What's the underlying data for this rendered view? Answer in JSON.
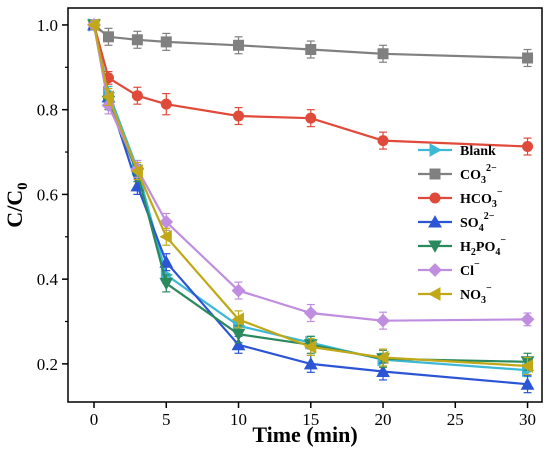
{
  "chart_data": {
    "type": "line",
    "xlabel": "Time (min)",
    "ylabel_main": "C/C",
    "ylabel_sub": "0",
    "xlim": [
      -1.8,
      31
    ],
    "ylim": [
      0.11,
      1.04
    ],
    "xticks": [
      0,
      5,
      10,
      15,
      20,
      25,
      30
    ],
    "yticks": [
      0.2,
      0.4,
      0.6,
      0.8,
      1.0
    ],
    "ytick_labels": [
      "0.2",
      "0.4",
      "0.6",
      "0.8",
      "1.0"
    ],
    "grid": false,
    "legend_position": "center-right",
    "x": [
      0,
      1,
      3,
      5,
      10,
      15,
      20,
      30
    ],
    "series": [
      {
        "key": "blank",
        "name_main": "Blank",
        "name_sup": "",
        "name_sub": "",
        "name_sub2": "",
        "name_tail": "",
        "color": "#3db8d6",
        "marker": "triangle-right",
        "values": [
          1.0,
          0.84,
          0.66,
          0.41,
          0.29,
          0.25,
          0.21,
          0.185
        ],
        "errors": [
          0.01,
          0.015,
          0.02,
          0.02,
          0.02,
          0.015,
          0.015,
          0.015
        ]
      },
      {
        "key": "co3",
        "name_main": "CO",
        "name_sub": "3",
        "name_sup": "2−",
        "name_sub2": "",
        "name_tail": "",
        "color": "#808080",
        "marker": "square",
        "values": [
          1.0,
          0.972,
          0.965,
          0.96,
          0.952,
          0.942,
          0.932,
          0.922
        ],
        "errors": [
          0.01,
          0.02,
          0.02,
          0.02,
          0.02,
          0.02,
          0.02,
          0.02
        ]
      },
      {
        "key": "hco3",
        "name_main": "HCO",
        "name_sub": "3",
        "name_sup": "−",
        "name_sub2": "",
        "name_tail": "",
        "color": "#e04a3a",
        "marker": "circle",
        "values": [
          1.0,
          0.875,
          0.833,
          0.813,
          0.785,
          0.78,
          0.727,
          0.713
        ],
        "errors": [
          0.01,
          0.015,
          0.02,
          0.025,
          0.02,
          0.02,
          0.02,
          0.02
        ]
      },
      {
        "key": "so4",
        "name_main": "SO",
        "name_sub": "4",
        "name_sup": "2−",
        "name_sub2": "",
        "name_tail": "",
        "color": "#2c55d6",
        "marker": "triangle-up",
        "values": [
          1.0,
          0.83,
          0.62,
          0.44,
          0.245,
          0.2,
          0.182,
          0.152
        ],
        "errors": [
          0.01,
          0.02,
          0.02,
          0.02,
          0.02,
          0.02,
          0.02,
          0.02
        ]
      },
      {
        "key": "h2po4",
        "name_main": "H",
        "name_sub": "2",
        "name_mid": "PO",
        "name_sub2": "4",
        "name_sup": "−",
        "name_tail": "",
        "color": "#2a8a5e",
        "marker": "triangle-down",
        "values": [
          1.0,
          0.82,
          0.65,
          0.39,
          0.27,
          0.245,
          0.212,
          0.205
        ],
        "errors": [
          0.01,
          0.02,
          0.02,
          0.02,
          0.02,
          0.02,
          0.02,
          0.02
        ]
      },
      {
        "key": "cl",
        "name_main": "Cl",
        "name_sub": "",
        "name_sup": "−",
        "name_sub2": "",
        "name_tail": "",
        "color": "#c08ee0",
        "marker": "diamond",
        "values": [
          1.0,
          0.81,
          0.66,
          0.535,
          0.373,
          0.32,
          0.302,
          0.305
        ],
        "errors": [
          0.01,
          0.02,
          0.02,
          0.02,
          0.02,
          0.02,
          0.02,
          0.015
        ]
      },
      {
        "key": "no3",
        "name_main": "NO",
        "name_sub": "3",
        "name_sup": "−",
        "name_sub2": "",
        "name_tail": "",
        "color": "#c0a818",
        "marker": "triangle-left",
        "values": [
          1.0,
          0.83,
          0.655,
          0.5,
          0.305,
          0.24,
          0.215,
          0.195
        ],
        "errors": [
          0.01,
          0.02,
          0.02,
          0.02,
          0.02,
          0.02,
          0.02,
          0.02
        ]
      }
    ]
  }
}
